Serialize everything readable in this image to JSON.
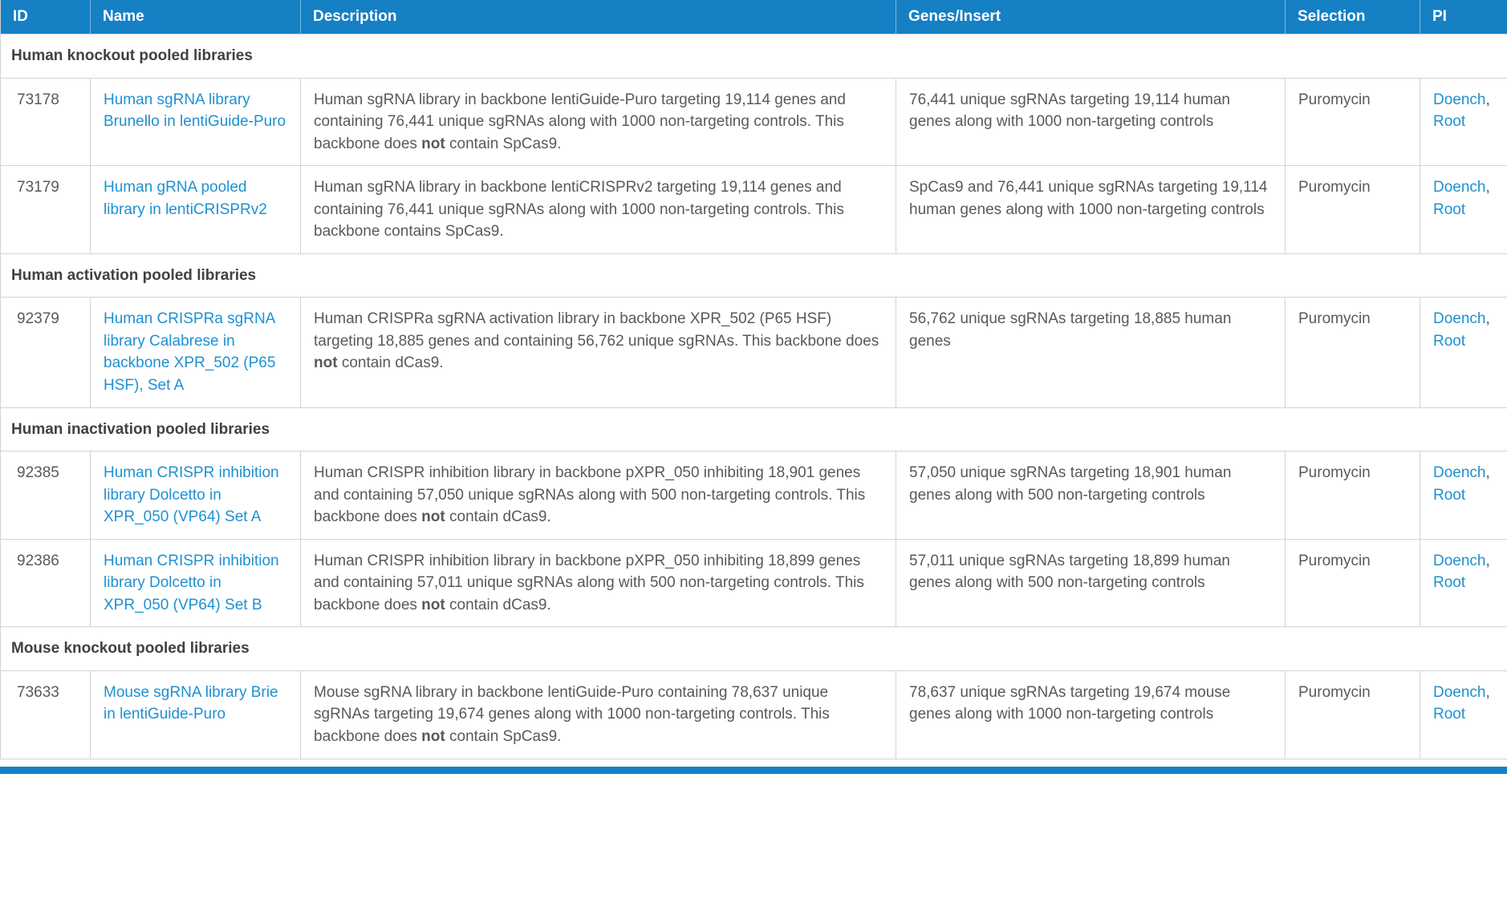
{
  "colors": {
    "header_bg": "#1580c4",
    "header_text": "#ffffff",
    "link": "#1e90d2",
    "body_text": "#58595b",
    "section_text": "#414042",
    "border": "#d1d3d4"
  },
  "table": {
    "columns": [
      "ID",
      "Name",
      "Description",
      "Genes/Insert",
      "Selection",
      "PI"
    ],
    "pi_separator": ", ",
    "sections": [
      {
        "title": "Human knockout pooled libraries",
        "rows": [
          {
            "id": "73178",
            "name": "Human sgRNA library Brunello in lentiGuide-Puro",
            "desc": {
              "pre": "Human sgRNA library in backbone lentiGuide-Puro targeting 19,114 genes and containing 76,441 unique sgRNAs along with 1000 non-targeting controls. This backbone does ",
              "bold": "not",
              "post": " contain SpCas9."
            },
            "genes": "76,441 unique sgRNAs targeting 19,114 human genes along with 1000 non-targeting controls",
            "selection": "Puromycin",
            "pi": [
              "Doench",
              "Root"
            ]
          },
          {
            "id": "73179",
            "name": "Human gRNA pooled library in lentiCRISPRv2",
            "desc": {
              "pre": "Human sgRNA library in backbone lentiCRISPRv2 targeting 19,114 genes and containing 76,441 unique sgRNAs along with 1000 non-targeting controls. This backbone contains SpCas9.",
              "bold": "",
              "post": ""
            },
            "genes": "SpCas9 and 76,441 unique sgRNAs targeting 19,114 human genes along with 1000 non-targeting controls",
            "selection": "Puromycin",
            "pi": [
              "Doench",
              "Root"
            ]
          }
        ]
      },
      {
        "title": "Human activation pooled libraries",
        "rows": [
          {
            "id": "92379",
            "name": "Human CRISPRa sgRNA library Calabrese in backbone XPR_502 (P65 HSF), Set A",
            "desc": {
              "pre": "Human CRISPRa sgRNA activation library in backbone XPR_502 (P65 HSF) targeting 18,885 genes and containing 56,762 unique sgRNAs. This backbone does ",
              "bold": "not",
              "post": " contain dCas9."
            },
            "genes": "56,762 unique sgRNAs targeting 18,885 human genes",
            "selection": "Puromycin",
            "pi": [
              "Doench",
              "Root"
            ]
          }
        ]
      },
      {
        "title": "Human inactivation pooled libraries",
        "rows": [
          {
            "id": "92385",
            "name": "Human CRISPR inhibition library Dolcetto in XPR_050 (VP64) Set A",
            "desc": {
              "pre": "Human CRISPR inhibition library in backbone pXPR_050 inhibiting 18,901 genes and containing 57,050 unique sgRNAs along with 500 non-targeting controls. This backbone does ",
              "bold": "not",
              "post": " contain dCas9."
            },
            "genes": "57,050 unique sgRNAs targeting 18,901 human genes along with 500 non-targeting controls",
            "selection": "Puromycin",
            "pi": [
              "Doench",
              "Root"
            ]
          },
          {
            "id": "92386",
            "name": "Human CRISPR inhibition library Dolcetto in XPR_050 (VP64) Set B",
            "desc": {
              "pre": "Human CRISPR inhibition library in backbone pXPR_050 inhibiting 18,899 genes and containing 57,011 unique sgRNAs along with 500 non-targeting controls. This backbone does ",
              "bold": "not",
              "post": " contain dCas9."
            },
            "genes": "57,011 unique sgRNAs targeting 18,899 human genes along with 500 non-targeting controls",
            "selection": "Puromycin",
            "pi": [
              "Doench",
              "Root"
            ]
          }
        ]
      },
      {
        "title": "Mouse knockout pooled libraries",
        "rows": [
          {
            "id": "73633",
            "name": "Mouse sgRNA library Brie in lentiGuide-Puro",
            "desc": {
              "pre": "Mouse sgRNA library in backbone lentiGuide-Puro containing 78,637 unique sgRNAs targeting 19,674 genes along with 1000 non-targeting controls. This backbone does ",
              "bold": "not",
              "post": " contain SpCas9."
            },
            "genes": "78,637 unique sgRNAs targeting 19,674 mouse genes along with 1000 non-targeting controls",
            "selection": "Puromycin",
            "pi": [
              "Doench",
              "Root"
            ]
          }
        ]
      }
    ]
  }
}
